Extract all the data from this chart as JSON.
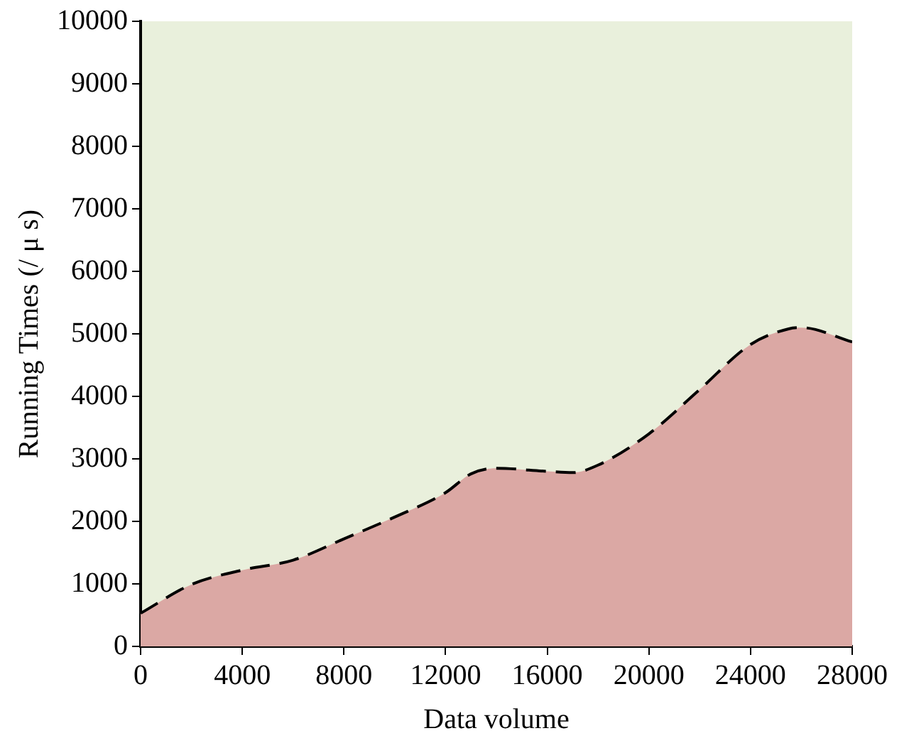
{
  "chart_data": {
    "type": "area",
    "xlabel": "Data volume",
    "ylabel": "Running Times (/ μ s)",
    "x": [
      0,
      2000,
      4000,
      6000,
      8000,
      10000,
      12000,
      13000,
      14000,
      16000,
      17000,
      18000,
      20000,
      22000,
      24000,
      25500,
      26000,
      28000
    ],
    "series": [
      {
        "color": "#dba8a4",
        "values": [
          530,
          990,
          1220,
          1380,
          1720,
          2070,
          2460,
          2760,
          2850,
          2800,
          2780,
          2900,
          3400,
          4110,
          4830,
          5080,
          5100,
          4870
        ]
      }
    ],
    "xlim": [
      0,
      28000
    ],
    "xticks": [
      0,
      4000,
      8000,
      12000,
      16000,
      20000,
      24000,
      28000
    ],
    "ylim": [
      0,
      10000
    ],
    "yticks": [
      0,
      1000,
      2000,
      3000,
      4000,
      5000,
      6000,
      7000,
      8000,
      9000,
      10000
    ],
    "line_style": "dashed",
    "grid": false,
    "legend": false
  }
}
